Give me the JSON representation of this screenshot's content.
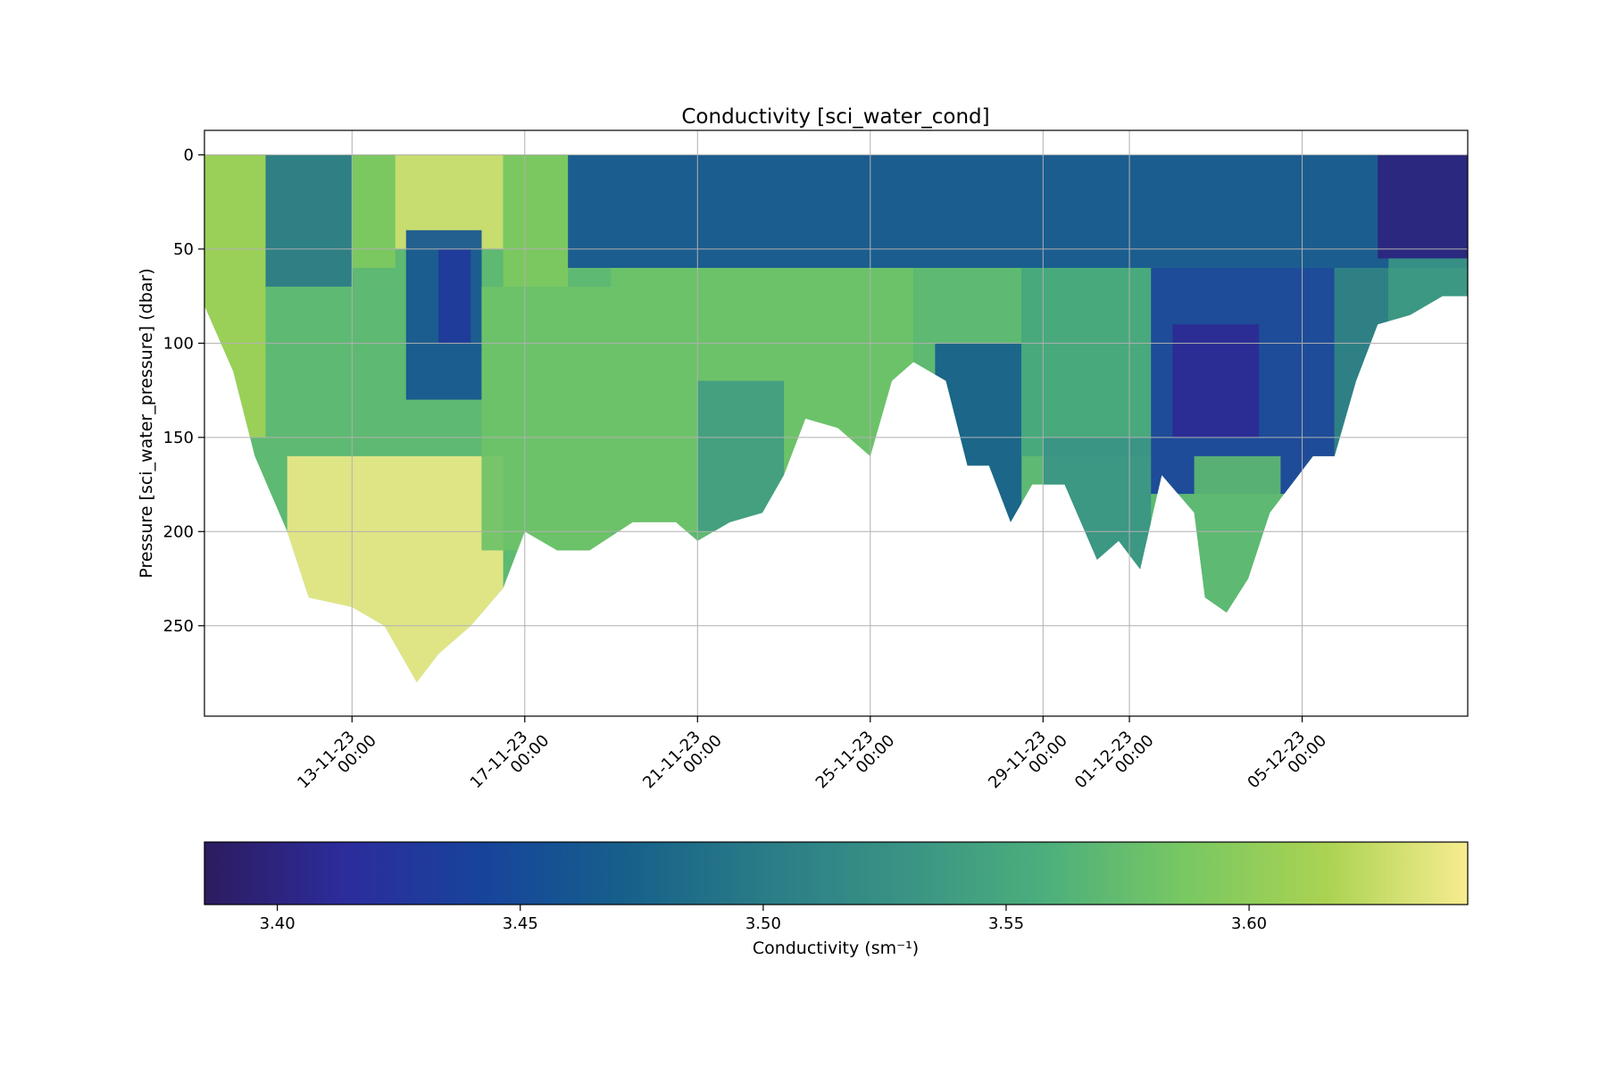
{
  "chart_data": {
    "type": "scatter",
    "title": "Conductivity [sci_water_cond]",
    "xlabel": "",
    "ylabel": "Pressure [sci_water_pressure] (dbar)",
    "x_scale": "time",
    "y_inverted": true,
    "grid": true,
    "xlim": [
      "2023-11-09T14:00",
      "2023-12-08T20:00"
    ],
    "ylim": [
      298,
      -13
    ],
    "x_ticks": [
      {
        "date": "2023-11-13T00:00",
        "line1": "13-11-23",
        "line2": "00:00"
      },
      {
        "date": "2023-11-17T00:00",
        "line1": "17-11-23",
        "line2": "00:00"
      },
      {
        "date": "2023-11-21T00:00",
        "line1": "21-11-23",
        "line2": "00:00"
      },
      {
        "date": "2023-11-25T00:00",
        "line1": "25-11-23",
        "line2": "00:00"
      },
      {
        "date": "2023-11-29T00:00",
        "line1": "29-11-23",
        "line2": "00:00"
      },
      {
        "date": "2023-12-01T00:00",
        "line1": "01-12-23",
        "line2": "00:00"
      },
      {
        "date": "2023-12-05T00:00",
        "line1": "05-12-23",
        "line2": "00:00"
      }
    ],
    "y_ticks": [
      0,
      50,
      100,
      150,
      200,
      250
    ],
    "colorbar": {
      "label": "Conductivity (sm⁻¹)",
      "range": [
        3.385,
        3.645
      ],
      "ticks": [
        3.4,
        3.45,
        3.5,
        3.55,
        3.6
      ],
      "tick_labels": [
        "3.40",
        "3.45",
        "3.50",
        "3.55",
        "3.60"
      ],
      "colormap": [
        "#2c1b5e",
        "#2c2c9c",
        "#17449b",
        "#16608a",
        "#2a7c87",
        "#3a9384",
        "#4caf7c",
        "#79c862",
        "#abd352",
        "#f7ec90"
      ]
    },
    "max_depth_profile": [
      [
        "2023-11-09T14:00",
        80
      ],
      [
        "2023-11-10T06:00",
        115
      ],
      [
        "2023-11-10T18:00",
        160
      ],
      [
        "2023-11-11T12:00",
        200
      ],
      [
        "2023-11-12T00:00",
        235
      ],
      [
        "2023-11-13T00:00",
        240
      ],
      [
        "2023-11-13T18:00",
        250
      ],
      [
        "2023-11-14T12:00",
        280
      ],
      [
        "2023-11-15T00:00",
        265
      ],
      [
        "2023-11-15T18:00",
        250
      ],
      [
        "2023-11-16T12:00",
        230
      ],
      [
        "2023-11-17T00:00",
        200
      ],
      [
        "2023-11-17T18:00",
        210
      ],
      [
        "2023-11-18T12:00",
        210
      ],
      [
        "2023-11-19T12:00",
        195
      ],
      [
        "2023-11-20T12:00",
        195
      ],
      [
        "2023-11-21T00:00",
        205
      ],
      [
        "2023-11-21T18:00",
        195
      ],
      [
        "2023-11-22T12:00",
        190
      ],
      [
        "2023-11-23T00:00",
        170
      ],
      [
        "2023-11-23T12:00",
        140
      ],
      [
        "2023-11-24T06:00",
        145
      ],
      [
        "2023-11-25T00:00",
        160
      ],
      [
        "2023-11-25T12:00",
        120
      ],
      [
        "2023-11-26T00:00",
        110
      ],
      [
        "2023-11-26T18:00",
        120
      ],
      [
        "2023-11-27T06:00",
        165
      ],
      [
        "2023-11-27T18:00",
        165
      ],
      [
        "2023-11-28T06:00",
        195
      ],
      [
        "2023-11-28T18:00",
        175
      ],
      [
        "2023-11-29T12:00",
        175
      ],
      [
        "2023-11-30T06:00",
        215
      ],
      [
        "2023-11-30T18:00",
        205
      ],
      [
        "2023-12-01T06:00",
        220
      ],
      [
        "2023-12-01T18:00",
        170
      ],
      [
        "2023-12-02T12:00",
        190
      ],
      [
        "2023-12-02T18:00",
        235
      ],
      [
        "2023-12-03T06:00",
        243
      ],
      [
        "2023-12-03T18:00",
        225
      ],
      [
        "2023-12-04T06:00",
        190
      ],
      [
        "2023-12-04T18:00",
        175
      ],
      [
        "2023-12-05T06:00",
        160
      ],
      [
        "2023-12-05T18:00",
        160
      ],
      [
        "2023-12-06T06:00",
        120
      ],
      [
        "2023-12-06T18:00",
        90
      ],
      [
        "2023-12-07T12:00",
        85
      ],
      [
        "2023-12-08T06:00",
        75
      ],
      [
        "2023-12-08T20:00",
        75
      ]
    ],
    "conductivity_regions": [
      {
        "x": [
          "2023-11-09T14:00",
          "2023-11-11T00:00"
        ],
        "y": [
          0,
          150
        ],
        "value": 3.61
      },
      {
        "x": [
          "2023-11-11T00:00",
          "2023-11-13T00:00"
        ],
        "y": [
          0,
          70
        ],
        "value": 3.5
      },
      {
        "x": [
          "2023-11-11T00:00",
          "2023-11-14T00:00"
        ],
        "y": [
          70,
          180
        ],
        "value": 3.57
      },
      {
        "x": [
          "2023-11-11T12:00",
          "2023-11-16T12:00"
        ],
        "y": [
          160,
          280
        ],
        "value": 3.64
      },
      {
        "x": [
          "2023-11-13T00:00",
          "2023-11-14T00:00"
        ],
        "y": [
          0,
          60
        ],
        "value": 3.59
      },
      {
        "x": [
          "2023-11-14T00:00",
          "2023-11-16T12:00"
        ],
        "y": [
          0,
          50
        ],
        "value": 3.63
      },
      {
        "x": [
          "2023-11-14T06:00",
          "2023-11-16T00:00"
        ],
        "y": [
          40,
          130
        ],
        "value": 3.46
      },
      {
        "x": [
          "2023-11-15T00:00",
          "2023-11-15T18:00"
        ],
        "y": [
          50,
          100
        ],
        "value": 3.43
      },
      {
        "x": [
          "2023-11-16T12:00",
          "2023-11-18T00:00"
        ],
        "y": [
          0,
          70
        ],
        "value": 3.59
      },
      {
        "x": [
          "2023-11-16T00:00",
          "2023-11-19T00:00"
        ],
        "y": [
          70,
          210
        ],
        "value": 3.58
      },
      {
        "x": [
          "2023-11-18T00:00",
          "2023-12-08T20:00"
        ],
        "y": [
          0,
          60
        ],
        "value": 3.46
      },
      {
        "x": [
          "2023-11-19T00:00",
          "2023-11-26T00:00"
        ],
        "y": [
          60,
          200
        ],
        "value": 3.58
      },
      {
        "x": [
          "2023-11-21T00:00",
          "2023-11-23T00:00"
        ],
        "y": [
          120,
          200
        ],
        "value": 3.54
      },
      {
        "x": [
          "2023-11-26T00:00",
          "2023-11-28T00:00"
        ],
        "y": [
          60,
          120
        ],
        "value": 3.57
      },
      {
        "x": [
          "2023-11-26T12:00",
          "2023-11-28T12:00"
        ],
        "y": [
          100,
          200
        ],
        "value": 3.47
      },
      {
        "x": [
          "2023-11-28T12:00",
          "2023-12-01T12:00"
        ],
        "y": [
          60,
          160
        ],
        "value": 3.55
      },
      {
        "x": [
          "2023-11-29T00:00",
          "2023-12-01T12:00"
        ],
        "y": [
          150,
          225
        ],
        "value": 3.53
      },
      {
        "x": [
          "2023-12-01T12:00",
          "2023-12-05T18:00"
        ],
        "y": [
          60,
          180
        ],
        "value": 3.44
      },
      {
        "x": [
          "2023-12-02T00:00",
          "2023-12-04T00:00"
        ],
        "y": [
          90,
          150
        ],
        "value": 3.41
      },
      {
        "x": [
          "2023-12-02T12:00",
          "2023-12-04T12:00"
        ],
        "y": [
          160,
          245
        ],
        "value": 3.57
      },
      {
        "x": [
          "2023-12-05T18:00",
          "2023-12-07T00:00"
        ],
        "y": [
          60,
          165
        ],
        "value": 3.5
      },
      {
        "x": [
          "2023-12-06T18:00",
          "2023-12-08T20:00"
        ],
        "y": [
          0,
          55
        ],
        "value": 3.4
      },
      {
        "x": [
          "2023-12-07T00:00",
          "2023-12-08T20:00"
        ],
        "y": [
          55,
          90
        ],
        "value": 3.53
      }
    ]
  }
}
